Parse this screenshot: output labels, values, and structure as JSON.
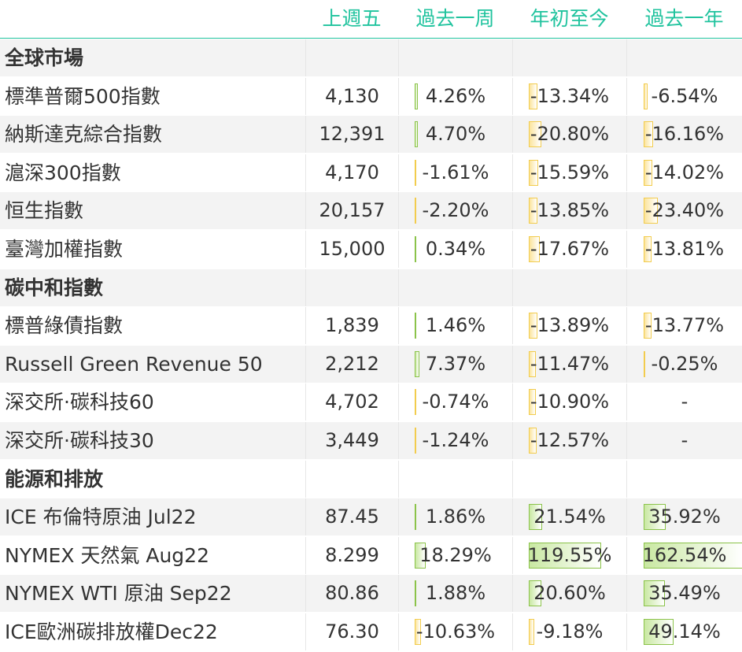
{
  "header": [
    "上週五",
    "過去一周",
    "年初至今",
    "過去一年"
  ],
  "rows": [
    {
      "type": "section",
      "name": "全球市場"
    },
    {
      "type": "data",
      "name": "標準普爾500指數",
      "last": "4,130",
      "w": 4.26,
      "ytd": -13.34,
      "y1": -6.54
    },
    {
      "type": "data",
      "name": "納斯達克綜合指數",
      "last": "12,391",
      "w": 4.7,
      "ytd": -20.8,
      "y1": -16.16
    },
    {
      "type": "data",
      "name": "滬深300指數",
      "last": "4,170",
      "w": -1.61,
      "ytd": -15.59,
      "y1": -14.02
    },
    {
      "type": "data",
      "name": "恒生指數",
      "last": "20,157",
      "w": -2.2,
      "ytd": -13.85,
      "y1": -23.4
    },
    {
      "type": "data",
      "name": "臺灣加權指數",
      "last": "15,000",
      "w": 0.34,
      "ytd": -17.67,
      "y1": -13.81
    },
    {
      "type": "section",
      "name": "碳中和指數"
    },
    {
      "type": "data",
      "name": "標普綠債指數",
      "last": "1,839",
      "w": 1.46,
      "ytd": -13.89,
      "y1": -13.77
    },
    {
      "type": "data",
      "name": "Russell Green Revenue 50",
      "last": "2,212",
      "w": 7.37,
      "ytd": -11.47,
      "y1": -0.25
    },
    {
      "type": "data",
      "name": "深交所·碳科技60",
      "last": "4,702",
      "w": -0.74,
      "ytd": -10.9,
      "y1": null
    },
    {
      "type": "data",
      "name": "深交所·碳科技30",
      "last": "3,449",
      "w": -1.24,
      "ytd": -12.57,
      "y1": null
    },
    {
      "type": "section",
      "name": "能源和排放"
    },
    {
      "type": "data",
      "name": "ICE 布倫特原油 Jul22",
      "last": "87.45",
      "w": 1.86,
      "ytd": 21.54,
      "y1": 35.92
    },
    {
      "type": "data",
      "name": "NYMEX 天然氣 Aug22",
      "last": "8.299",
      "w": 18.29,
      "ytd": 119.55,
      "y1": 162.54
    },
    {
      "type": "data",
      "name": "NYMEX WTI 原油 Sep22",
      "last": "80.86",
      "w": 1.88,
      "ytd": 20.6,
      "y1": 35.49
    },
    {
      "type": "data",
      "name": "ICE歐洲碳排放權Dec22",
      "last": "76.30",
      "w": -10.63,
      "ytd": -9.18,
      "y1": 49.14
    }
  ],
  "missing_value_symbol": "-",
  "colors": {
    "header_text": "#20c39e",
    "positive_bar": "#8bc34a",
    "negative_bar": "#f2cc4d",
    "row_alt": "#f3f3f3"
  }
}
